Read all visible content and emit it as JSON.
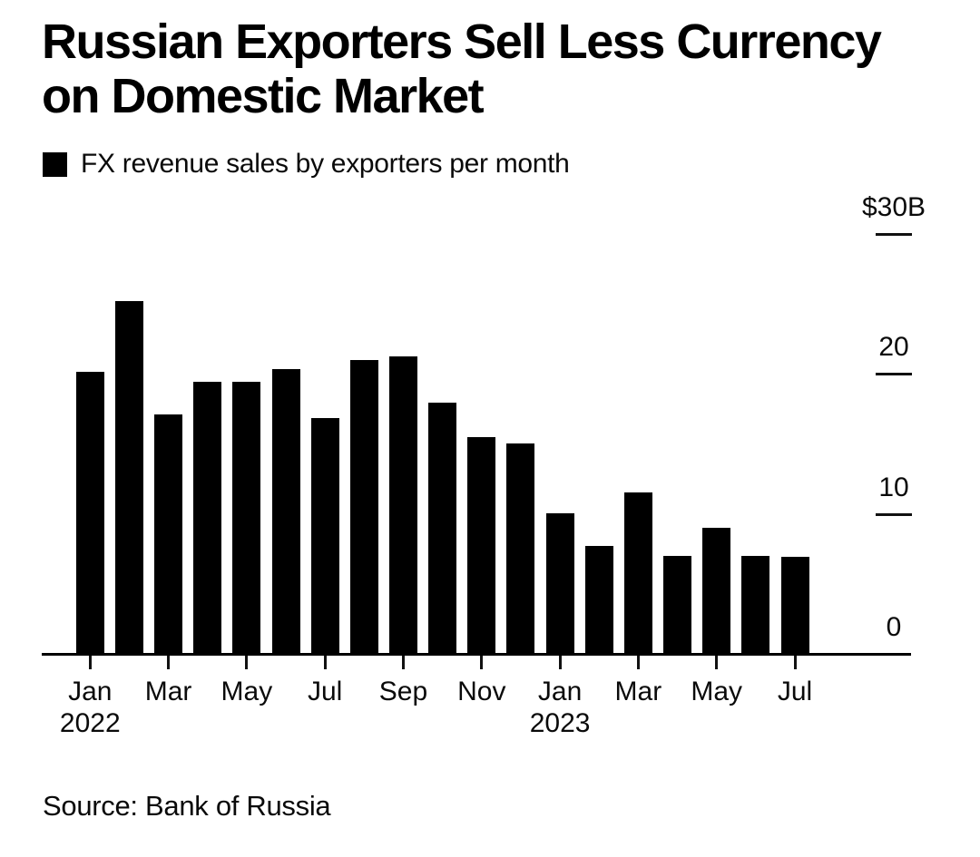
{
  "header": {
    "title_line1": "Russian Exporters Sell Less Currency",
    "title_line2": "on Domestic Market",
    "legend_label": "FX revenue sales by exporters per month",
    "legend_color": "#000000"
  },
  "source_label": "Source: Bank of Russia",
  "colors": {
    "bar": "#000000",
    "text": "#0a0a0a",
    "background": "#ffffff"
  },
  "chart_data": {
    "type": "bar",
    "title": "Russian Exporters Sell Less Currency on Domestic Market",
    "legend": [
      "FX revenue sales by exporters per month"
    ],
    "legend_position": "top-left",
    "grid": false,
    "unit": "$B",
    "xlabel": "",
    "ylabel": "",
    "ylim": [
      0,
      30
    ],
    "categories": [
      "Jan 2022",
      "Feb 2022",
      "Mar 2022",
      "Apr 2022",
      "May 2022",
      "Jun 2022",
      "Jul 2022",
      "Aug 2022",
      "Sep 2022",
      "Oct 2022",
      "Nov 2022",
      "Dec 2022",
      "Jan 2023",
      "Feb 2023",
      "Mar 2023",
      "Apr 2023",
      "May 2023",
      "Jun 2023",
      "Jul 2023"
    ],
    "values": [
      20.1,
      25.2,
      17.1,
      19.4,
      19.4,
      20.3,
      16.8,
      21.0,
      21.2,
      17.9,
      15.5,
      15.0,
      10.0,
      7.7,
      11.5,
      7.0,
      9.0,
      7.0,
      6.9
    ],
    "y_ticks": [
      {
        "label": "$30B",
        "value": 30,
        "dash": true
      },
      {
        "label": "20",
        "value": 20,
        "dash": true
      },
      {
        "label": "10",
        "value": 10,
        "dash": true
      },
      {
        "label": "0",
        "value": 0,
        "dash": false
      }
    ],
    "x_ticks": [
      {
        "label": "Jan",
        "year": "2022",
        "month_index": 0
      },
      {
        "label": "Mar",
        "month_index": 2
      },
      {
        "label": "May",
        "month_index": 4
      },
      {
        "label": "Jul",
        "month_index": 6
      },
      {
        "label": "Sep",
        "month_index": 8
      },
      {
        "label": "Nov",
        "month_index": 10
      },
      {
        "label": "Jan",
        "year": "2023",
        "month_index": 12
      },
      {
        "label": "Mar",
        "month_index": 14
      },
      {
        "label": "May",
        "month_index": 16
      },
      {
        "label": "Jul",
        "month_index": 18
      }
    ],
    "source": "Source: Bank of Russia"
  }
}
